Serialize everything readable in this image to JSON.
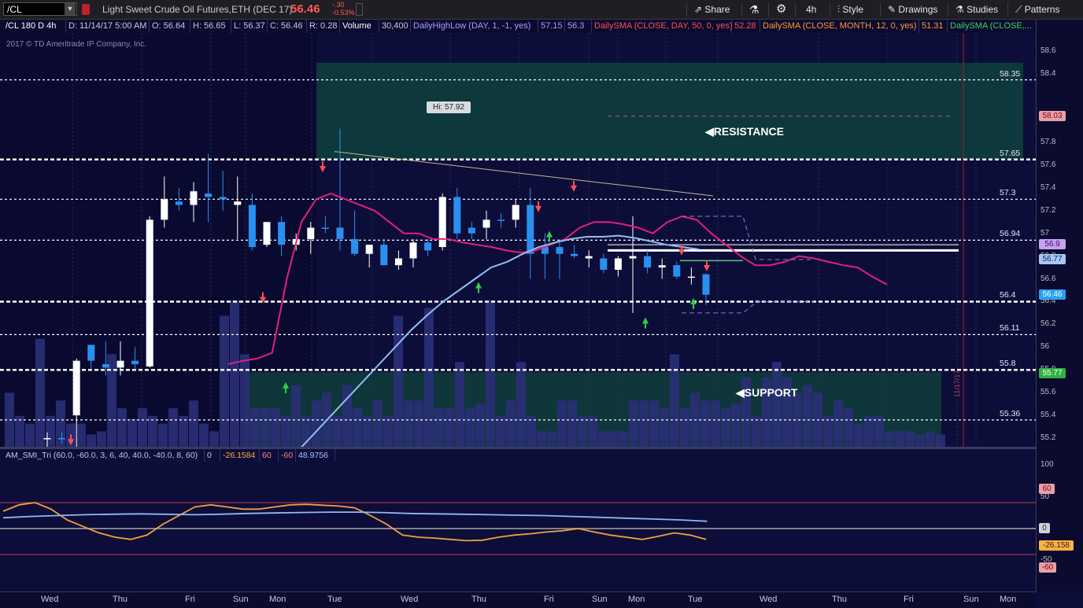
{
  "toolbar": {
    "symbol": "/CL",
    "description": "Light Sweet Crude Oil Futures,ETH (DEC 17)",
    "last": "56.46",
    "change": "-.30",
    "change_pct": "-0.53%",
    "share_label": "Share",
    "timeframe_label": "4h",
    "style_label": "Style",
    "drawings_label": "Drawings",
    "studies_label": "Studies",
    "patterns_label": "Patterns"
  },
  "info": {
    "chart_id": "/CL 180 D 4h",
    "date": "D: 11/14/17 5:00 AM",
    "open": "O: 56.64",
    "high": "H: 56.65",
    "low": "L: 56.37",
    "close": "C: 56.46",
    "range": "R: 0.28",
    "volume_label": "Volume",
    "volume_value": "30,400",
    "study1": "DailyHighLow (DAY, 1, -1, yes)",
    "study1_v1": "57.15",
    "study1_v2": "56.3",
    "study2": "DailySMA (CLOSE, DAY, 50, 0, yes)",
    "study2_v": "52.28",
    "study3": "DailySMA (CLOSE, MONTH, 12, 0, yes)",
    "study3_v": "51.31",
    "study4": "DailySMA (CLOSE,..."
  },
  "copyright": "2017 © TD Ameritrade IP Company, Inc.",
  "hi_label": "Hi: 57.92",
  "zones": {
    "resistance": "RESISTANCE",
    "support": "SUPPORT"
  },
  "levels": [
    "58.35",
    "57.65",
    "57.3",
    "56.94",
    "56.4",
    "56.11",
    "55.8",
    "55.36"
  ],
  "badges": [
    {
      "text": "58.03",
      "bg": "#e8a0a8",
      "fg": "#8a0010"
    },
    {
      "text": "56.9",
      "bg": "#c8a0f0",
      "fg": "#301060"
    },
    {
      "text": "56.77",
      "bg": "#a8c8f0",
      "fg": "#0a2a6a"
    },
    {
      "text": "56.46",
      "bg": "#2aa0f0",
      "fg": "#ffffff"
    },
    {
      "text": "55.77",
      "bg": "#30b040",
      "fg": "#ffffff"
    }
  ],
  "osc": {
    "name": "AM_SMI_Tri (60.0, -60.0, 3, 6, 40, 40.0, -40.0, 8, 60)",
    "v0": "0",
    "v1": "-26.1584",
    "v2": "60",
    "v3": "-60",
    "v4": "48.9756",
    "badge_upper": "60",
    "badge_zero": "0",
    "badge_val": "-26.158",
    "badge_lower": "-60",
    "tick_100": "100",
    "tick_50": "50",
    "tick_m50": "-50"
  },
  "date_marker": "11/17/17",
  "chart_data": {
    "type": "candlestick",
    "y_ticks": [
      "58.6",
      "58.4",
      "58",
      "57.8",
      "57.6",
      "57.4",
      "57.2",
      "57",
      "56.8",
      "56.6",
      "56.4",
      "56.2",
      "56",
      "55.8",
      "55.6",
      "55.4",
      "55.2"
    ],
    "ylim": [
      55.1,
      58.75
    ],
    "x_labels": [
      "Wed",
      "Thu",
      "Fri",
      "Sun",
      "Mon",
      "Tue",
      "Wed",
      "Thu",
      "Fri",
      "Sun",
      "Mon",
      "Tue",
      "Wed",
      "Thu",
      "Fri",
      "Sun",
      "Mon"
    ],
    "candles": [
      {
        "o": 55.2,
        "h": 55.25,
        "l": 55.1,
        "c": 55.2,
        "up": true
      },
      {
        "o": 55.2,
        "h": 55.25,
        "l": 55.15,
        "c": 55.2,
        "up": false
      },
      {
        "o": 55.4,
        "h": 55.9,
        "l": 55.05,
        "c": 55.88,
        "up": true
      },
      {
        "o": 55.88,
        "h": 56.02,
        "l": 55.8,
        "c": 56.02,
        "up": false
      },
      {
        "o": 55.85,
        "h": 56.05,
        "l": 55.75,
        "c": 55.82,
        "up": false
      },
      {
        "o": 55.82,
        "h": 56.05,
        "l": 55.75,
        "c": 55.88,
        "up": true
      },
      {
        "o": 55.88,
        "h": 56.0,
        "l": 55.8,
        "c": 55.85,
        "up": false
      },
      {
        "o": 55.83,
        "h": 57.15,
        "l": 55.82,
        "c": 57.12,
        "up": true
      },
      {
        "o": 57.12,
        "h": 57.5,
        "l": 57.05,
        "c": 57.3,
        "up": true
      },
      {
        "o": 57.28,
        "h": 57.4,
        "l": 57.2,
        "c": 57.25,
        "up": false
      },
      {
        "o": 57.25,
        "h": 57.45,
        "l": 57.1,
        "c": 57.37,
        "up": true
      },
      {
        "o": 57.35,
        "h": 57.7,
        "l": 57.1,
        "c": 57.32,
        "up": false
      },
      {
        "o": 57.32,
        "h": 57.55,
        "l": 57.2,
        "c": 57.3,
        "up": false
      },
      {
        "o": 57.28,
        "h": 57.5,
        "l": 56.95,
        "c": 57.25,
        "up": true
      },
      {
        "o": 57.25,
        "h": 57.35,
        "l": 56.85,
        "c": 56.88,
        "up": false
      },
      {
        "o": 56.9,
        "h": 57.1,
        "l": 56.88,
        "c": 57.1,
        "up": true
      },
      {
        "o": 57.1,
        "h": 57.15,
        "l": 56.8,
        "c": 56.9,
        "up": false
      },
      {
        "o": 56.9,
        "h": 57.0,
        "l": 56.85,
        "c": 56.95,
        "up": true
      },
      {
        "o": 56.95,
        "h": 57.1,
        "l": 56.82,
        "c": 57.05,
        "up": true
      },
      {
        "o": 57.05,
        "h": 57.15,
        "l": 57.0,
        "c": 57.05,
        "up": false
      },
      {
        "o": 57.05,
        "h": 57.92,
        "l": 56.85,
        "c": 56.95,
        "up": false
      },
      {
        "o": 56.95,
        "h": 57.2,
        "l": 56.8,
        "c": 56.82,
        "up": false
      },
      {
        "o": 56.82,
        "h": 56.9,
        "l": 56.7,
        "c": 56.9,
        "up": true
      },
      {
        "o": 56.9,
        "h": 56.95,
        "l": 56.72,
        "c": 56.72,
        "up": false
      },
      {
        "o": 56.72,
        "h": 56.85,
        "l": 56.68,
        "c": 56.78,
        "up": true
      },
      {
        "o": 56.78,
        "h": 56.95,
        "l": 56.7,
        "c": 56.92,
        "up": true
      },
      {
        "o": 56.92,
        "h": 56.95,
        "l": 56.8,
        "c": 56.85,
        "up": false
      },
      {
        "o": 56.88,
        "h": 57.35,
        "l": 56.85,
        "c": 57.32,
        "up": true
      },
      {
        "o": 57.32,
        "h": 57.4,
        "l": 56.95,
        "c": 57.0,
        "up": false
      },
      {
        "o": 57.0,
        "h": 57.1,
        "l": 56.95,
        "c": 57.05,
        "up": false
      },
      {
        "o": 57.05,
        "h": 57.2,
        "l": 56.95,
        "c": 57.12,
        "up": true
      },
      {
        "o": 57.12,
        "h": 57.18,
        "l": 57.05,
        "c": 57.12,
        "up": false
      },
      {
        "o": 57.12,
        "h": 57.3,
        "l": 57.05,
        "c": 57.25,
        "up": true
      },
      {
        "o": 57.25,
        "h": 57.4,
        "l": 56.6,
        "c": 56.82,
        "up": false
      },
      {
        "o": 56.82,
        "h": 57.0,
        "l": 56.6,
        "c": 56.88,
        "up": false
      },
      {
        "o": 56.88,
        "h": 56.95,
        "l": 56.6,
        "c": 56.82,
        "up": false
      },
      {
        "o": 56.82,
        "h": 56.9,
        "l": 56.78,
        "c": 56.8,
        "up": false
      },
      {
        "o": 56.8,
        "h": 56.85,
        "l": 56.7,
        "c": 56.78,
        "up": true
      },
      {
        "o": 56.78,
        "h": 56.82,
        "l": 56.65,
        "c": 56.68,
        "up": false
      },
      {
        "o": 56.68,
        "h": 56.8,
        "l": 56.62,
        "c": 56.78,
        "up": true
      },
      {
        "o": 56.78,
        "h": 57.15,
        "l": 56.3,
        "c": 56.8,
        "up": true
      },
      {
        "o": 56.8,
        "h": 56.85,
        "l": 56.65,
        "c": 56.7,
        "up": false
      },
      {
        "o": 56.7,
        "h": 56.78,
        "l": 56.6,
        "c": 56.72,
        "up": true
      },
      {
        "o": 56.72,
        "h": 56.75,
        "l": 56.6,
        "c": 56.62,
        "up": false
      },
      {
        "o": 56.62,
        "h": 56.7,
        "l": 56.55,
        "c": 56.62,
        "up": true
      },
      {
        "o": 56.64,
        "h": 56.65,
        "l": 56.37,
        "c": 56.46,
        "up": false
      }
    ],
    "volume": [
      0.35,
      0.2,
      0.15,
      0.7,
      0.2,
      0.3,
      0.15,
      0.15,
      0.08,
      0.1,
      0.6,
      0.25,
      0.18,
      0.25,
      0.2,
      0.15,
      0.25,
      0.2,
      0.3,
      0.15,
      0.1,
      0.85,
      0.95,
      0.6,
      0.25,
      0.25,
      0.25,
      0.2,
      0.4,
      0.2,
      0.3,
      0.35,
      0.2,
      0.4,
      0.25,
      0.2,
      0.3,
      0.2,
      0.85,
      0.3,
      0.3,
      0.9,
      0.25,
      0.25,
      0.55,
      0.25,
      0.28,
      0.95,
      0.2,
      0.3,
      0.55,
      0.2,
      0.1,
      0.1,
      0.3,
      0.3,
      0.2,
      0.2,
      0.1,
      0.1,
      0.1,
      0.3,
      0.3,
      0.3,
      0.25,
      0.6,
      0.25,
      0.35,
      0.3,
      0.3,
      0.25,
      0.28,
      0.45,
      0.2,
      0.45,
      0.55,
      0.45,
      0.35,
      0.4,
      0.35,
      0.2,
      0.3,
      0.25,
      0.15,
      0.2,
      0.2,
      0.1,
      0.1,
      0.1,
      0.08,
      0.1,
      0.08,
      0.15,
      0.12,
      0.1
    ],
    "sma_red": [
      55.85,
      55.88,
      55.9,
      55.95,
      56.6,
      57.1,
      57.3,
      57.35,
      57.3,
      57.25,
      57.2,
      57.1,
      57.0,
      57.0,
      56.95,
      56.95,
      56.92,
      56.9,
      56.88,
      56.85,
      56.83,
      56.85,
      56.9,
      56.95,
      57.05,
      57.1,
      57.1,
      57.08,
      57.05,
      57.0,
      57.1,
      57.15,
      57.12,
      57.0,
      56.9,
      56.8,
      56.72,
      56.72,
      56.75,
      56.8,
      56.78,
      56.75,
      56.72,
      56.7,
      56.62,
      56.55
    ],
    "sma_blue": [
      55.0,
      55.1,
      55.25,
      55.4,
      55.55,
      55.7,
      55.85,
      56.0,
      56.15,
      56.28,
      56.4,
      56.5,
      56.6,
      56.7,
      56.75,
      56.82,
      56.88,
      56.92,
      56.95,
      56.97,
      56.97,
      56.98,
      56.96,
      56.93,
      56.9,
      56.88,
      56.86
    ],
    "oscillator_orange": [
      40,
      55,
      60,
      45,
      20,
      5,
      -10,
      -20,
      -25,
      -15,
      10,
      30,
      50,
      55,
      50,
      45,
      45,
      50,
      55,
      56,
      54,
      52,
      48,
      30,
      10,
      -15,
      -20,
      -22,
      -25,
      -28,
      -27,
      -20,
      -15,
      -12,
      -8,
      -5,
      0,
      -8,
      -15,
      -20,
      -25,
      -18,
      -10,
      -15,
      -25
    ],
    "oscillator_blue": [
      25,
      28,
      30,
      32,
      33,
      34,
      33,
      32,
      33,
      35,
      36,
      37,
      38,
      38,
      37,
      35,
      34,
      33,
      32,
      31,
      30,
      28,
      26,
      24,
      22,
      20,
      17
    ]
  }
}
